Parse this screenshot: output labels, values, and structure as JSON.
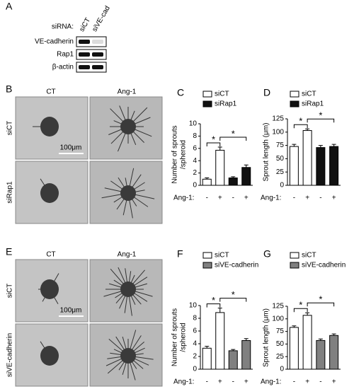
{
  "blot": {
    "letter": "A",
    "header": "siRNA:",
    "lanes": [
      "siCT",
      "siVE-cad"
    ],
    "rows": [
      "VE-cadherin",
      "Rap1",
      "β-actin"
    ]
  },
  "images": [
    {
      "letter": "B",
      "columns": [
        "CT",
        "Ang-1"
      ],
      "rows": [
        "siCT",
        "siRap1"
      ],
      "scale": "100μm"
    },
    {
      "letter": "E",
      "columns": [
        "CT",
        "Ang-1"
      ],
      "rows": [
        "siCT",
        "siVE-cadherin"
      ],
      "scale": "100μm"
    }
  ],
  "chart_data": [
    {
      "type": "bar",
      "panel": "C",
      "ylabel": [
        "Number of sprouts",
        "/spheroid"
      ],
      "category_label": "Ang-1:",
      "categories": [
        "-",
        "+",
        "-",
        "+"
      ],
      "series": [
        {
          "name": "siCT",
          "color": "#ffffff",
          "values": [
            1.0,
            5.7,
            null,
            null
          ],
          "errors": [
            0.2,
            0.5,
            null,
            null
          ]
        },
        {
          "name": "siRap1",
          "color": "#111111",
          "values": [
            null,
            null,
            1.2,
            2.9
          ],
          "errors": [
            null,
            null,
            0.2,
            0.4
          ]
        }
      ],
      "ylim": [
        0,
        10
      ],
      "yticks": [
        0,
        2,
        4,
        6,
        8,
        10
      ],
      "annotations": [
        "*",
        "*"
      ]
    },
    {
      "type": "bar",
      "panel": "D",
      "ylabel": [
        "Sprout length (μm)"
      ],
      "category_label": "Ang-1:",
      "categories": [
        "-",
        "+",
        "-",
        "+"
      ],
      "series": [
        {
          "name": "siCT",
          "color": "#ffffff",
          "values": [
            73,
            103,
            null,
            null
          ],
          "errors": [
            4,
            3,
            null,
            null
          ]
        },
        {
          "name": "siRap1",
          "color": "#111111",
          "values": [
            null,
            null,
            71,
            73
          ],
          "errors": [
            null,
            null,
            4,
            4
          ]
        }
      ],
      "ylim": [
        0,
        125
      ],
      "yticks": [
        0,
        25,
        50,
        75,
        100,
        125
      ],
      "annotations": [
        "*",
        "*"
      ]
    },
    {
      "type": "bar",
      "panel": "F",
      "ylabel": [
        "Number of sprouts",
        "/spheroid"
      ],
      "category_label": "Ang-1:",
      "categories": [
        "-",
        "+",
        "-",
        "+"
      ],
      "series": [
        {
          "name": "siCT",
          "color": "#ffffff",
          "values": [
            3.3,
            8.9,
            null,
            null
          ],
          "errors": [
            0.3,
            0.7,
            null,
            null
          ]
        },
        {
          "name": "siVE-cadherin",
          "color": "#808080",
          "values": [
            null,
            null,
            2.9,
            4.5
          ],
          "errors": [
            null,
            null,
            0.2,
            0.3
          ]
        }
      ],
      "ylim": [
        0,
        10
      ],
      "yticks": [
        0,
        2,
        4,
        6,
        8,
        10
      ],
      "annotations": [
        "*",
        "*"
      ]
    },
    {
      "type": "bar",
      "panel": "G",
      "ylabel": [
        "Sprout length (μm)"
      ],
      "category_label": "Ang-1:",
      "categories": [
        "-",
        "+",
        "-",
        "+"
      ],
      "series": [
        {
          "name": "siCT",
          "color": "#ffffff",
          "values": [
            83,
            107,
            null,
            null
          ],
          "errors": [
            3,
            5,
            null,
            null
          ]
        },
        {
          "name": "siVE-cadherin",
          "color": "#808080",
          "values": [
            null,
            null,
            57,
            67
          ],
          "errors": [
            null,
            null,
            3,
            3
          ]
        }
      ],
      "ylim": [
        0,
        125
      ],
      "yticks": [
        0,
        25,
        50,
        75,
        100,
        125
      ],
      "annotations": [
        "*",
        "*"
      ]
    }
  ]
}
